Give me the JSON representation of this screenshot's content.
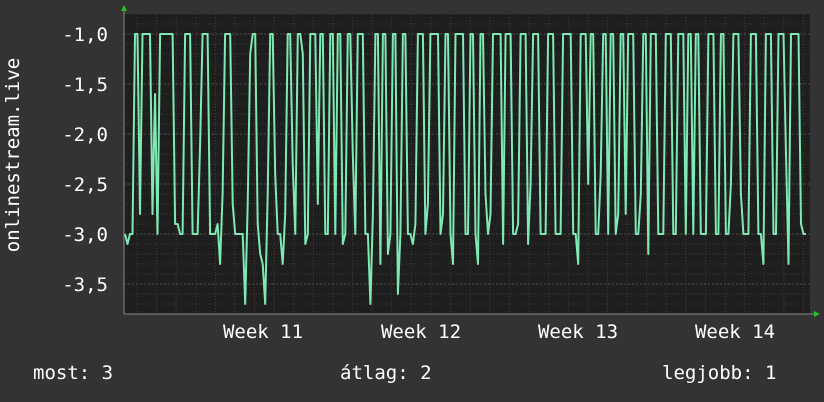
{
  "colors": {
    "background": "#333333",
    "plot_background": "#1e1e1e",
    "line": "#7fe9b4",
    "grid_major": "#4a4a4a",
    "grid_minor": "#3a3a3a",
    "grid_vertical": "#553333",
    "axis_arrow": "#22c322",
    "text": "#ffffff"
  },
  "chart_data": {
    "type": "line",
    "ylabel": "onlinestream.live",
    "xlabel": "",
    "title": "",
    "x_ticks": [
      "Week 11",
      "Week 12",
      "Week 13",
      "Week 14"
    ],
    "y_ticks": [
      "-1,0",
      "-1,5",
      "-2,0",
      "-2,5",
      "-3,0",
      "-3,5"
    ],
    "y_tick_values": [
      -1.0,
      -1.5,
      -2.0,
      -2.5,
      -3.0,
      -3.5
    ],
    "ylim": [
      -3.8,
      -0.8
    ],
    "grid": true,
    "series": [
      {
        "color": "#7fe9b4",
        "values": [
          -3.0,
          -3.1,
          -3.0,
          -3.0,
          -1.0,
          -1.0,
          -2.8,
          -1.0,
          -1.0,
          -1.0,
          -1.0,
          -2.8,
          -1.6,
          -3.0,
          -1.0,
          -1.0,
          -1.0,
          -1.0,
          -1.0,
          -1.0,
          -2.9,
          -2.9,
          -3.0,
          -3.0,
          -1.0,
          -1.0,
          -1.0,
          -3.0,
          -3.0,
          -3.0,
          -2.1,
          -1.0,
          -1.0,
          -1.0,
          -3.0,
          -3.0,
          -3.0,
          -2.9,
          -3.3,
          -2.6,
          -1.0,
          -1.0,
          -1.0,
          -2.7,
          -3.0,
          -3.0,
          -3.0,
          -3.0,
          -3.7,
          -2.7,
          -1.2,
          -1.0,
          -1.0,
          -2.9,
          -3.2,
          -3.3,
          -3.7,
          -2.6,
          -1.0,
          -1.0,
          -2.4,
          -3.0,
          -3.0,
          -3.3,
          -2.8,
          -1.0,
          -1.0,
          -2.3,
          -3.0,
          -1.0,
          -1.0,
          -1.2,
          -3.1,
          -3.0,
          -1.0,
          -1.0,
          -1.0,
          -2.7,
          -1.0,
          -1.0,
          -3.0,
          -3.0,
          -1.0,
          -1.0,
          -3.0,
          -1.0,
          -1.0,
          -3.1,
          -3.0,
          -1.0,
          -1.0,
          -2.2,
          -3.0,
          -1.0,
          -1.0,
          -1.0,
          -3.0,
          -3.0,
          -3.7,
          -2.8,
          -1.0,
          -1.0,
          -3.3,
          -1.0,
          -1.0,
          -3.2,
          -3.0,
          -1.0,
          -1.0,
          -3.6,
          -3.0,
          -1.0,
          -1.0,
          -3.0,
          -3.0,
          -3.1,
          -2.9,
          -1.0,
          -1.0,
          -1.0,
          -3.0,
          -2.7,
          -1.0,
          -1.0,
          -1.0,
          -1.0,
          -3.0,
          -2.8,
          -1.0,
          -1.0,
          -3.0,
          -3.3,
          -1.0,
          -1.0,
          -1.0,
          -1.0,
          -3.0,
          -3.0,
          -1.0,
          -1.0,
          -3.0,
          -3.3,
          -1.0,
          -1.0,
          -2.6,
          -3.0,
          -2.8,
          -1.0,
          -1.0,
          -1.0,
          -1.0,
          -3.1,
          -1.0,
          -1.0,
          -1.0,
          -3.0,
          -3.0,
          -2.9,
          -1.0,
          -1.0,
          -1.0,
          -3.1,
          -2.5,
          -1.0,
          -1.0,
          -1.0,
          -3.0,
          -3.0,
          -3.0,
          -1.0,
          -1.0,
          -1.0,
          -3.0,
          -3.0,
          -3.0,
          -1.0,
          -1.0,
          -1.0,
          -1.0,
          -3.0,
          -3.0,
          -3.3,
          -1.0,
          -1.0,
          -1.0,
          -2.5,
          -1.0,
          -1.0,
          -3.0,
          -3.0,
          -2.4,
          -1.0,
          -1.0,
          -3.0,
          -1.0,
          -1.0,
          -3.0,
          -2.8,
          -1.0,
          -1.0,
          -2.8,
          -1.0,
          -1.0,
          -1.0,
          -3.0,
          -3.0,
          -2.6,
          -1.0,
          -1.0,
          -3.2,
          -1.0,
          -1.0,
          -1.0,
          -3.0,
          -3.0,
          -3.0,
          -1.0,
          -1.0,
          -1.0,
          -3.0,
          -3.0,
          -1.0,
          -1.0,
          -1.0,
          -3.0,
          -1.0,
          -1.0,
          -3.0,
          -1.0,
          -1.0,
          -3.0,
          -3.0,
          -3.0,
          -1.0,
          -1.0,
          -1.0,
          -3.0,
          -3.0,
          -1.0,
          -1.0,
          -3.0,
          -3.0,
          -2.5,
          -1.0,
          -1.0,
          -1.0,
          -2.6,
          -3.0,
          -3.0,
          -3.0,
          -1.0,
          -1.0,
          -1.0,
          -3.0,
          -3.0,
          -3.3,
          -1.0,
          -1.0,
          -1.0,
          -3.0,
          -3.0,
          -1.0,
          -1.0,
          -1.0,
          -2.2,
          -3.3,
          -1.0,
          -1.0,
          -1.0,
          -1.0,
          -2.9,
          -3.0,
          -3.0
        ],
        "note_on_values": "estimated from plot; sampled evenly over the visible time range"
      }
    ]
  },
  "footer": {
    "current": "most: 3",
    "average": "átlag: 2",
    "best": "legjobb: 1"
  }
}
